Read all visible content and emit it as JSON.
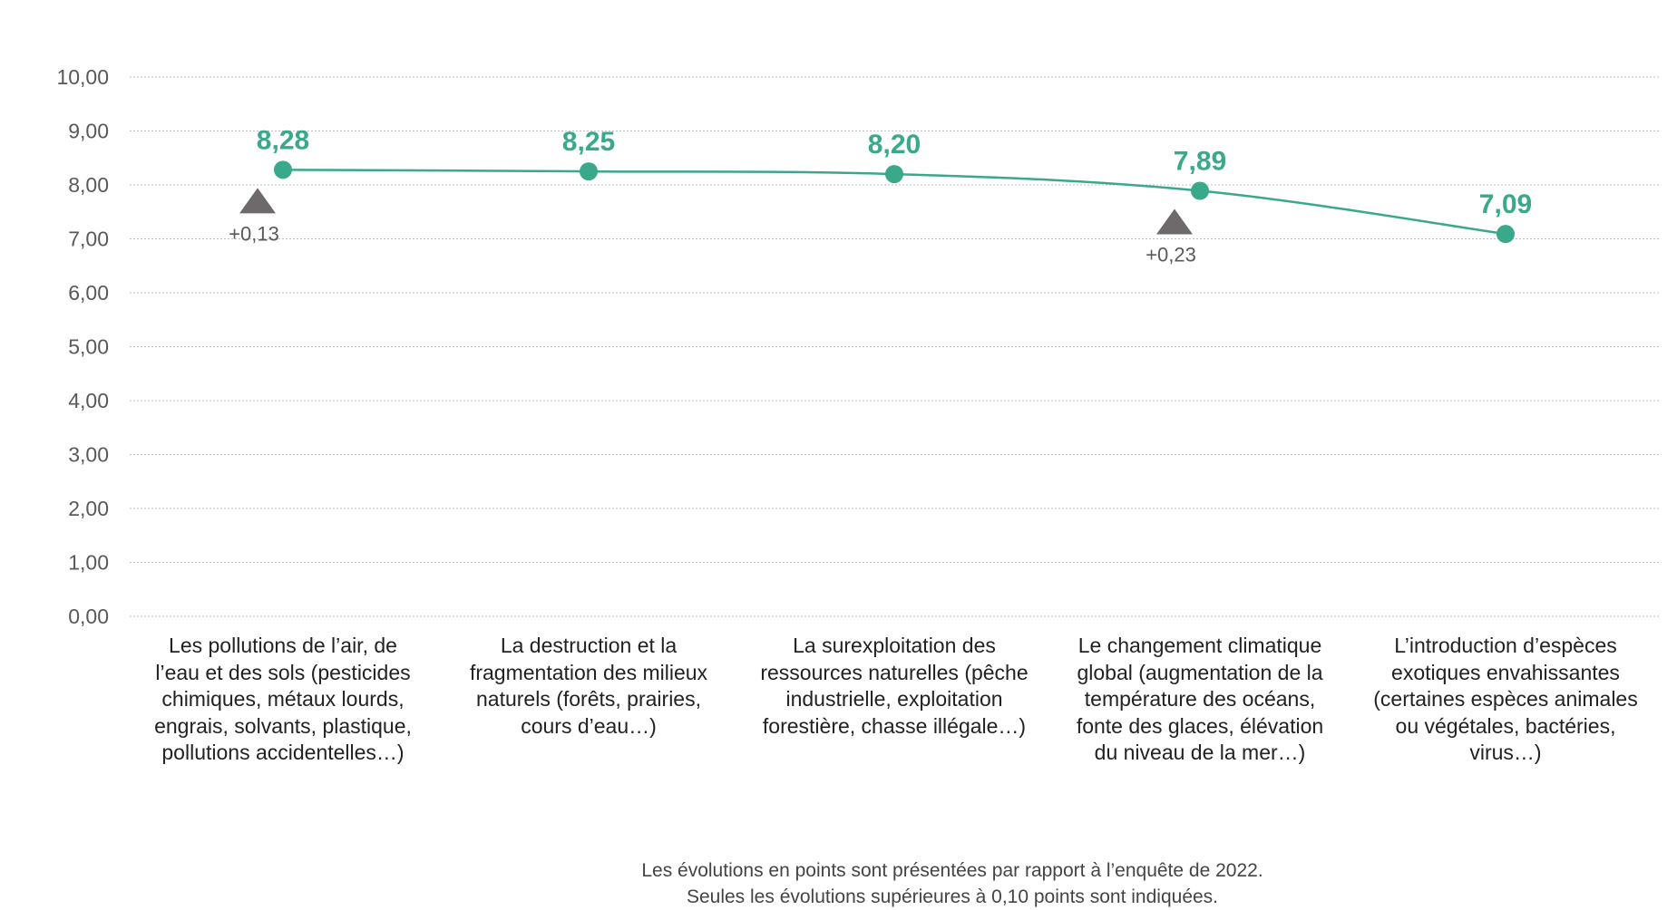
{
  "chart_data": {
    "type": "line",
    "ylim": [
      0,
      10
    ],
    "y_ticks": [
      "10,00",
      "9,00",
      "8,00",
      "7,00",
      "6,00",
      "5,00",
      "4,00",
      "3,00",
      "2,00",
      "1,00",
      "0,00"
    ],
    "grid": true,
    "categories": [
      [
        "Les pollutions de l’air, de",
        "l’eau et des sols (pesticides",
        "chimiques, métaux lourds,",
        "engrais, solvants, plastique,",
        "pollutions accidentelles…)"
      ],
      [
        "La destruction et la",
        "fragmentation des milieux",
        "naturels (forêts, prairies,",
        "cours d’eau…)"
      ],
      [
        "La surexploitation des",
        "ressources naturelles (pêche",
        "industrielle, exploitation",
        "forestière, chasse illégale…)"
      ],
      [
        "Le changement climatique",
        "global (augmentation de la",
        "température des océans,",
        "fonte des glaces, élévation",
        "du niveau de la mer…)"
      ],
      [
        "L’introduction d’espèces",
        "exotiques envahissantes",
        "(certaines espèces animales",
        "ou végétales, bactéries,",
        "virus…)"
      ]
    ],
    "values": [
      8.28,
      8.25,
      8.2,
      7.89,
      7.09
    ],
    "value_labels": [
      "8,28",
      "8,25",
      "8,20",
      "7,89",
      "7,09"
    ],
    "evolutions": [
      {
        "index": 0,
        "label": "+0,13",
        "direction": "up"
      },
      {
        "index": 3,
        "label": "+0,23",
        "direction": "up"
      }
    ],
    "colors": {
      "line": "#3aa88b",
      "marker": "#3aa88b",
      "evolution_marker": "#6e6a6b",
      "grid": "#bfbfbf"
    }
  },
  "footnote": [
    "Les évolutions en points sont présentées par rapport à l’enquête de 2022.",
    "Seules les évolutions supérieures à 0,10 points sont indiquées."
  ]
}
